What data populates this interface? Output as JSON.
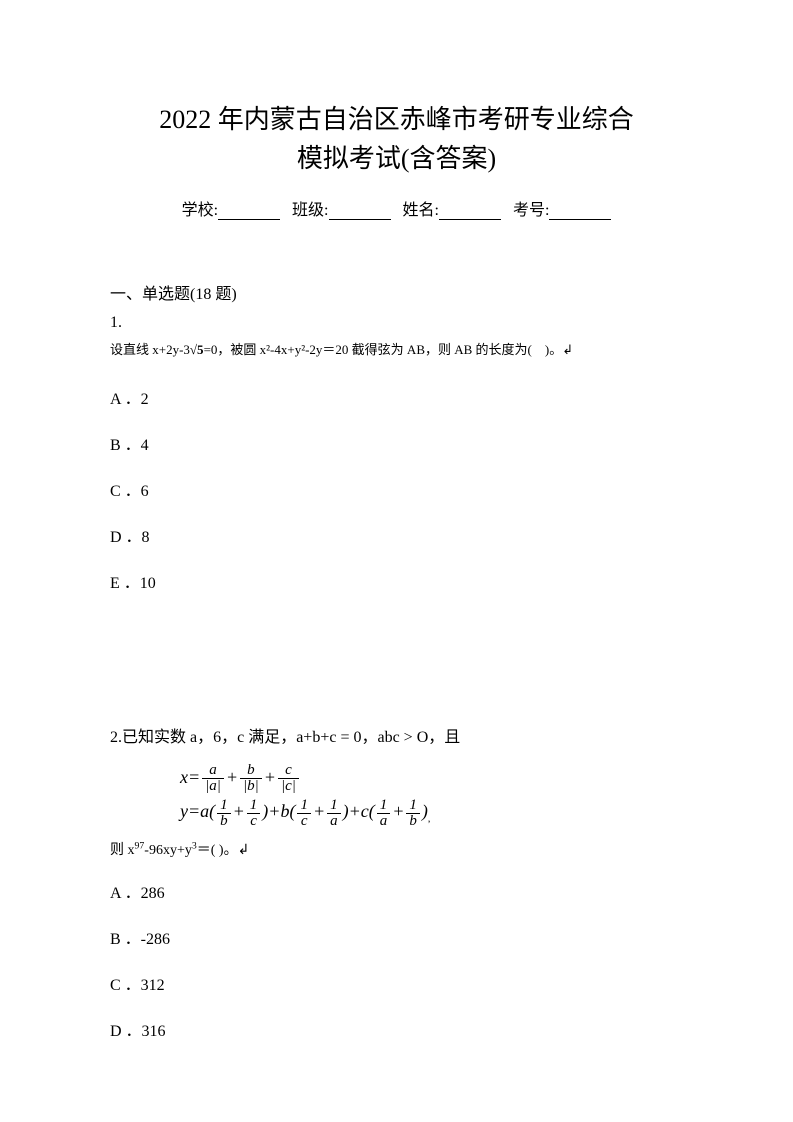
{
  "title": {
    "line1": "2022 年内蒙古自治区赤峰市考研专业综合",
    "line2": "模拟考试(含答案)"
  },
  "info": {
    "school_label": "学校:",
    "class_label": "班级:",
    "name_label": "姓名:",
    "exam_no_label": "考号:"
  },
  "section1": {
    "header": "一、单选题(18 题)",
    "q1": {
      "num": "1.",
      "statement_prefix": "设直线 x+2y-3",
      "statement_sqrt": "√5",
      "statement_mid": "=0，被圆 x²-4x+y²-2y＝20 截得弦为 AB，则 AB 的长度为(",
      "statement_suffix": ")。↲",
      "options": {
        "A": "A ．2",
        "B": "B ．4",
        "C": "C ．6",
        "D": "D ．8",
        "E": "E ．10"
      }
    },
    "q2": {
      "text": "2.已知实数 a，6，c 满足，a+b+c = 0，abc > O，且",
      "formula_x_prefix": "x=",
      "formula_y_prefix": "y=a(",
      "formula_y_mid1": ")+b(",
      "formula_y_mid2": ")+c(",
      "formula_y_suffix": ")",
      "result_prefix": "则 x",
      "result_exp1": "97",
      "result_mid1": "-96xy+y",
      "result_exp2": "3",
      "result_suffix": "＝(        )。↲",
      "options": {
        "A": "A ．286",
        "B": "B ．-286",
        "C": "C ．312",
        "D": "D ．316"
      }
    }
  },
  "colors": {
    "background": "#ffffff",
    "text": "#000000"
  }
}
